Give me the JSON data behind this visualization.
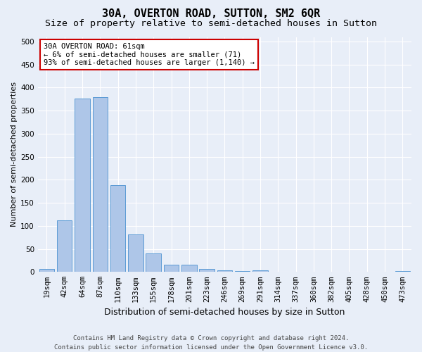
{
  "title": "30A, OVERTON ROAD, SUTTON, SM2 6QR",
  "subtitle": "Size of property relative to semi-detached houses in Sutton",
  "xlabel": "Distribution of semi-detached houses by size in Sutton",
  "ylabel": "Number of semi-detached properties",
  "bin_labels": [
    "19sqm",
    "42sqm",
    "64sqm",
    "87sqm",
    "110sqm",
    "133sqm",
    "155sqm",
    "178sqm",
    "201sqm",
    "223sqm",
    "246sqm",
    "269sqm",
    "291sqm",
    "314sqm",
    "337sqm",
    "360sqm",
    "382sqm",
    "405sqm",
    "428sqm",
    "450sqm",
    "473sqm"
  ],
  "values": [
    7,
    112,
    377,
    380,
    188,
    82,
    40,
    16,
    16,
    7,
    4,
    2,
    4,
    1,
    1,
    1,
    0,
    0,
    0,
    0,
    2
  ],
  "bar_color": "#aec6e8",
  "bar_edge_color": "#5b9bd5",
  "annotation_text": "30A OVERTON ROAD: 61sqm\n← 6% of semi-detached houses are smaller (71)\n93% of semi-detached houses are larger (1,140) →",
  "annotation_box_color": "#ffffff",
  "annotation_box_edge": "#cc0000",
  "ylim": [
    0,
    510
  ],
  "yticks": [
    0,
    50,
    100,
    150,
    200,
    250,
    300,
    350,
    400,
    450,
    500
  ],
  "footer_line1": "Contains HM Land Registry data © Crown copyright and database right 2024.",
  "footer_line2": "Contains public sector information licensed under the Open Government Licence v3.0.",
  "bg_color": "#e8eef8",
  "plot_bg_color": "#e8eef8",
  "title_fontsize": 11,
  "subtitle_fontsize": 9.5,
  "tick_fontsize": 7.5,
  "ylabel_fontsize": 8,
  "xlabel_fontsize": 9,
  "footer_fontsize": 6.5,
  "annotation_fontsize": 7.5
}
